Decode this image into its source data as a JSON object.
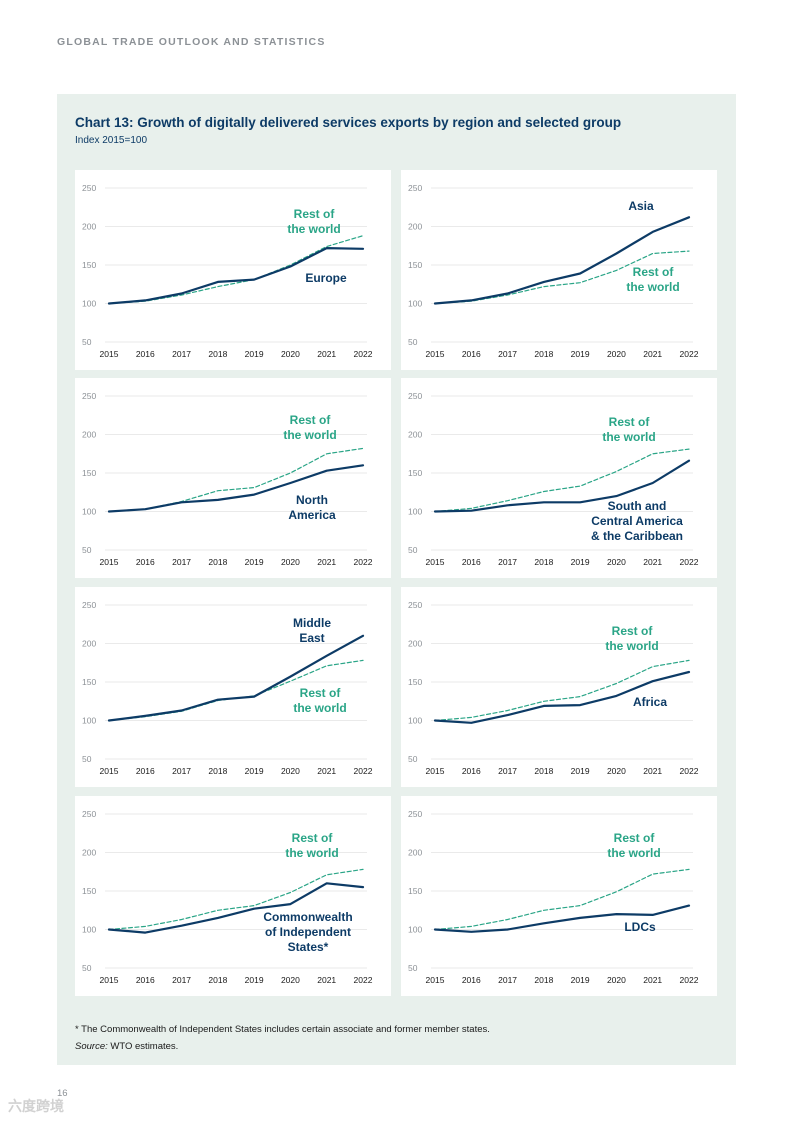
{
  "header": {
    "running_title": "GLOBAL TRADE OUTLOOK AND STATISTICS"
  },
  "figure": {
    "title": "Chart 13: Growth of digitally delivered services exports by region and selected group",
    "subtitle": "Index 2015=100"
  },
  "colors": {
    "region": "#0d3b66",
    "rest_of_world": "#2aa587",
    "grid": "#e3e3e3",
    "panel": "#e8f0ec"
  },
  "chart_data": [
    {
      "type": "line",
      "title": "Europe",
      "ylim": [
        50,
        250
      ],
      "yticks": [
        50,
        100,
        150,
        200,
        250
      ],
      "x": [
        2015,
        2016,
        2017,
        2018,
        2019,
        2020,
        2021,
        2022
      ],
      "series": [
        {
          "name": "Europe",
          "label_lines": [
            "Europe"
          ],
          "style": "solid",
          "values": [
            100,
            104,
            113,
            128,
            131,
            148,
            172,
            171
          ]
        },
        {
          "name": "Rest of the world",
          "label_lines": [
            "Rest of",
            "the world"
          ],
          "style": "dashed",
          "values": [
            100,
            103,
            111,
            122,
            131,
            150,
            174,
            188
          ]
        }
      ]
    },
    {
      "type": "line",
      "title": "Asia",
      "ylim": [
        50,
        250
      ],
      "yticks": [
        50,
        100,
        150,
        200,
        250
      ],
      "x": [
        2015,
        2016,
        2017,
        2018,
        2019,
        2020,
        2021,
        2022
      ],
      "series": [
        {
          "name": "Asia",
          "label_lines": [
            "Asia"
          ],
          "style": "solid",
          "values": [
            100,
            104,
            113,
            128,
            139,
            165,
            193,
            212
          ]
        },
        {
          "name": "Rest of the world",
          "label_lines": [
            "Rest of",
            "the world"
          ],
          "style": "dashed",
          "values": [
            100,
            103,
            111,
            122,
            127,
            143,
            165,
            168
          ]
        }
      ]
    },
    {
      "type": "line",
      "title": "North America",
      "ylim": [
        50,
        250
      ],
      "yticks": [
        50,
        100,
        150,
        200,
        250
      ],
      "x": [
        2015,
        2016,
        2017,
        2018,
        2019,
        2020,
        2021,
        2022
      ],
      "series": [
        {
          "name": "North America",
          "label_lines": [
            "North",
            "America"
          ],
          "style": "solid",
          "values": [
            100,
            103,
            112,
            115,
            122,
            137,
            153,
            160
          ]
        },
        {
          "name": "Rest of the world",
          "label_lines": [
            "Rest of",
            "the world"
          ],
          "style": "dashed",
          "values": [
            100,
            103,
            113,
            127,
            131,
            150,
            175,
            182
          ]
        }
      ]
    },
    {
      "type": "line",
      "title": "South and Central America & the Caribbean",
      "ylim": [
        50,
        250
      ],
      "yticks": [
        50,
        100,
        150,
        200,
        250
      ],
      "x": [
        2015,
        2016,
        2017,
        2018,
        2019,
        2020,
        2021,
        2022
      ],
      "series": [
        {
          "name": "South and Central America & the Caribbean",
          "label_lines": [
            "South and",
            "Central America",
            "& the Caribbean"
          ],
          "style": "solid",
          "values": [
            100,
            101,
            108,
            112,
            112,
            120,
            137,
            166
          ]
        },
        {
          "name": "Rest of the world",
          "label_lines": [
            "Rest of",
            "the world"
          ],
          "style": "dashed",
          "values": [
            100,
            104,
            114,
            126,
            133,
            152,
            175,
            181
          ]
        }
      ]
    },
    {
      "type": "line",
      "title": "Middle East",
      "ylim": [
        50,
        250
      ],
      "yticks": [
        50,
        100,
        150,
        200,
        250
      ],
      "x": [
        2015,
        2016,
        2017,
        2018,
        2019,
        2020,
        2021,
        2022
      ],
      "series": [
        {
          "name": "Middle East",
          "label_lines": [
            "Middle",
            "East"
          ],
          "style": "solid",
          "values": [
            100,
            106,
            113,
            127,
            131,
            157,
            184,
            210
          ]
        },
        {
          "name": "Rest of the world",
          "label_lines": [
            "Rest of",
            "the world"
          ],
          "style": "dashed",
          "values": [
            100,
            105,
            112,
            126,
            132,
            151,
            171,
            178
          ]
        }
      ]
    },
    {
      "type": "line",
      "title": "Africa",
      "ylim": [
        50,
        250
      ],
      "yticks": [
        50,
        100,
        150,
        200,
        250
      ],
      "x": [
        2015,
        2016,
        2017,
        2018,
        2019,
        2020,
        2021,
        2022
      ],
      "series": [
        {
          "name": "Africa",
          "label_lines": [
            "Africa"
          ],
          "style": "solid",
          "values": [
            100,
            97,
            107,
            119,
            120,
            132,
            151,
            163
          ]
        },
        {
          "name": "Rest of the world",
          "label_lines": [
            "Rest of",
            "the world"
          ],
          "style": "dashed",
          "values": [
            100,
            104,
            113,
            125,
            131,
            148,
            170,
            178
          ]
        }
      ]
    },
    {
      "type": "line",
      "title": "Commonwealth of Independent States*",
      "ylim": [
        50,
        250
      ],
      "yticks": [
        50,
        100,
        150,
        200,
        250
      ],
      "x": [
        2015,
        2016,
        2017,
        2018,
        2019,
        2020,
        2021,
        2022
      ],
      "series": [
        {
          "name": "Commonwealth of Independent States*",
          "label_lines": [
            "Commonwealth",
            "of Independent",
            "States*"
          ],
          "style": "solid",
          "values": [
            100,
            96,
            105,
            115,
            127,
            133,
            160,
            155
          ]
        },
        {
          "name": "Rest of the world",
          "label_lines": [
            "Rest of",
            "the world"
          ],
          "style": "dashed",
          "values": [
            100,
            104,
            113,
            125,
            131,
            148,
            171,
            178
          ]
        }
      ]
    },
    {
      "type": "line",
      "title": "LDCs",
      "ylim": [
        50,
        250
      ],
      "yticks": [
        50,
        100,
        150,
        200,
        250
      ],
      "x": [
        2015,
        2016,
        2017,
        2018,
        2019,
        2020,
        2021,
        2022
      ],
      "series": [
        {
          "name": "LDCs",
          "label_lines": [
            "LDCs"
          ],
          "style": "solid",
          "values": [
            100,
            97,
            100,
            108,
            115,
            120,
            119,
            131
          ]
        },
        {
          "name": "Rest of the world",
          "label_lines": [
            "Rest of",
            "the world"
          ],
          "style": "dashed",
          "values": [
            100,
            104,
            113,
            125,
            131,
            149,
            172,
            178
          ]
        }
      ]
    }
  ],
  "footnote": "* The Commonwealth of Independent States includes certain associate and former member states.",
  "source": {
    "label": "Source:",
    "text": " WTO estimates."
  },
  "page": {
    "number": "16"
  },
  "watermark": "六度跨境"
}
